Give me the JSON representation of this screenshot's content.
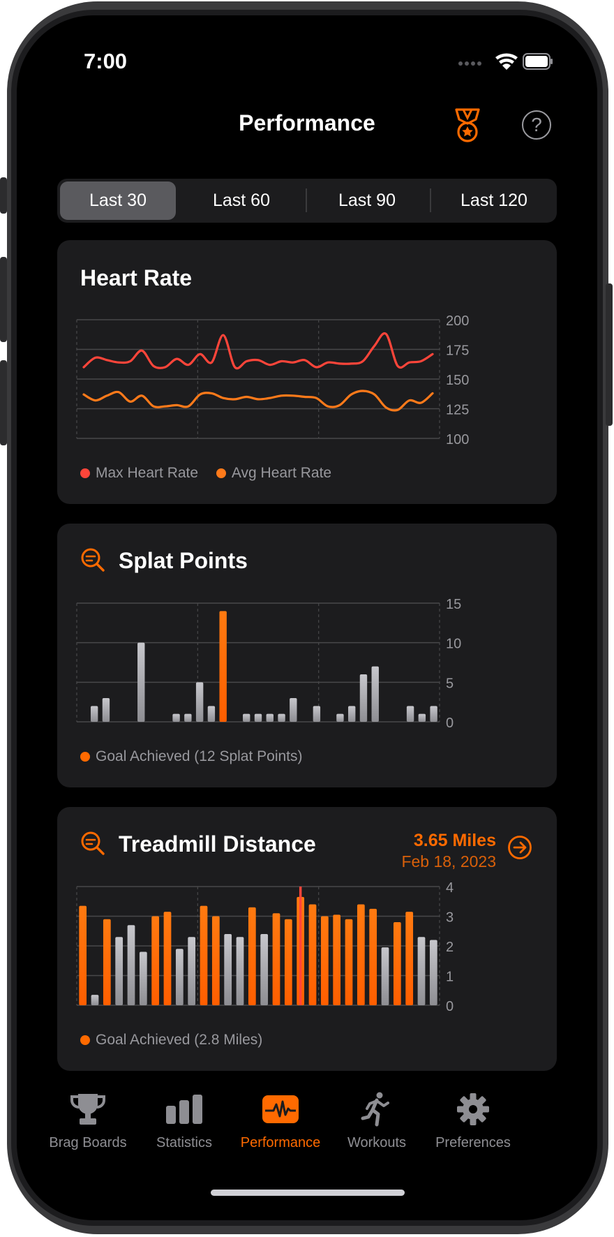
{
  "status_bar": {
    "time": "7:00"
  },
  "nav": {
    "title": "Performance"
  },
  "range_tabs": [
    {
      "label": "Last 30",
      "selected": true
    },
    {
      "label": "Last 60",
      "selected": false
    },
    {
      "label": "Last 90",
      "selected": false
    },
    {
      "label": "Last 120",
      "selected": false
    }
  ],
  "cards": {
    "heart_rate": {
      "title": "Heart Rate",
      "legend": [
        "Max Heart Rate",
        "Avg Heart Rate"
      ]
    },
    "splat_points": {
      "title": "Splat Points",
      "legend": "Goal Achieved (12 Splat Points)"
    },
    "treadmill": {
      "title": "Treadmill Distance",
      "highlight_value": "3.65 Miles",
      "highlight_date": "Feb 18, 2023",
      "legend": "Goal Achieved (2.8 Miles)"
    }
  },
  "colors": {
    "accent": "#ff6a00",
    "max_hr": "#ff453a",
    "avg_hr": "#ff7a1a",
    "gray_bar": "#a9a9ad",
    "selection_line": "#ff453a"
  },
  "chart_data": [
    {
      "type": "line",
      "title": "Heart Rate",
      "ylim": [
        100,
        200
      ],
      "yticks": [
        100,
        125,
        150,
        175,
        200
      ],
      "series": [
        {
          "name": "Max Heart Rate",
          "color": "#ff453a",
          "values": [
            160,
            168,
            166,
            164,
            165,
            174,
            161,
            160,
            167,
            162,
            171,
            164,
            187,
            160,
            165,
            166,
            162,
            165,
            164,
            166,
            160,
            164,
            163,
            163,
            165,
            178,
            188,
            161,
            164,
            165,
            171
          ]
        },
        {
          "name": "Avg Heart Rate",
          "color": "#ff7a1a",
          "values": [
            137,
            132,
            136,
            139,
            131,
            136,
            127,
            127,
            128,
            127,
            137,
            138,
            134,
            133,
            135,
            133,
            134,
            136,
            136,
            135,
            134,
            127,
            128,
            137,
            140,
            137,
            126,
            124,
            132,
            130,
            138
          ]
        }
      ]
    },
    {
      "type": "bar",
      "title": "Splat Points",
      "ylim": [
        0,
        15
      ],
      "yticks": [
        0,
        5,
        10,
        15
      ],
      "values": [
        0,
        2,
        3,
        0,
        0,
        10,
        0,
        0,
        1,
        1,
        5,
        2,
        14,
        0,
        1,
        1,
        1,
        1,
        3,
        0,
        2,
        0,
        1,
        2,
        6,
        7,
        0,
        0,
        2,
        1,
        2
      ],
      "goal": 12
    },
    {
      "type": "bar",
      "title": "Treadmill Distance",
      "ylim": [
        0,
        4
      ],
      "yticks": [
        0,
        1,
        2,
        3,
        4
      ],
      "values": [
        3.35,
        0.35,
        2.9,
        2.3,
        2.7,
        1.8,
        3.0,
        3.15,
        1.9,
        2.3,
        3.35,
        3.0,
        2.4,
        2.3,
        3.3,
        2.4,
        3.1,
        2.9,
        3.65,
        3.4,
        3.0,
        3.05,
        2.9,
        3.4,
        3.25,
        1.95,
        2.8,
        3.15,
        2.3,
        2.2
      ],
      "goal": 2.8,
      "selected_index": 18
    }
  ],
  "tabbar": [
    {
      "label": "Brag Boards",
      "icon": "trophy-icon"
    },
    {
      "label": "Statistics",
      "icon": "bar-chart-icon"
    },
    {
      "label": "Performance",
      "icon": "waveform-icon",
      "active": true
    },
    {
      "label": "Workouts",
      "icon": "runner-icon"
    },
    {
      "label": "Preferences",
      "icon": "gear-icon"
    }
  ]
}
